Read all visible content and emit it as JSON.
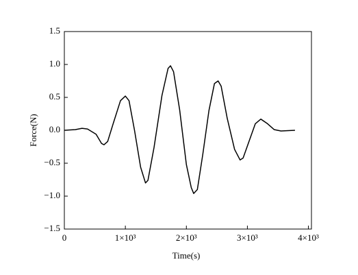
{
  "chart_data": {
    "type": "line",
    "x_label": "Time(s)",
    "y_label": "Force(N)",
    "x": [
      0,
      180,
      290,
      380,
      520,
      610,
      650,
      710,
      800,
      920,
      1000,
      1060,
      1150,
      1250,
      1330,
      1370,
      1470,
      1600,
      1700,
      1740,
      1790,
      1890,
      2000,
      2080,
      2120,
      2180,
      2270,
      2370,
      2460,
      2520,
      2570,
      2670,
      2790,
      2880,
      2930,
      3030,
      3130,
      3220,
      3330,
      3440,
      3550,
      3780
    ],
    "series": [
      {
        "color": "#000000",
        "values": [
          0,
          0.01,
          0.03,
          0.02,
          -0.06,
          -0.2,
          -0.22,
          -0.17,
          0.1,
          0.45,
          0.52,
          0.45,
          0,
          -0.56,
          -0.8,
          -0.76,
          -0.26,
          0.53,
          0.94,
          0.98,
          0.89,
          0.31,
          -0.52,
          -0.87,
          -0.96,
          -0.9,
          -0.36,
          0.3,
          0.71,
          0.75,
          0.67,
          0.18,
          -0.29,
          -0.45,
          -0.42,
          -0.16,
          0.1,
          0.17,
          0.1,
          0.01,
          -0.01,
          0
        ]
      }
    ],
    "xlim": [
      0,
      4050
    ],
    "xticks": [
      0,
      {
        "value": 1000,
        "label": "1×10³"
      },
      {
        "value": 2000,
        "label": "2×10³"
      },
      {
        "value": 3000,
        "label": "3×10³"
      },
      {
        "value": 4000,
        "label": "4×10³"
      }
    ],
    "ylim": [
      -1.5,
      1.5
    ],
    "yticks": [
      {
        "value": -1.5,
        "label": "−1.5"
      },
      {
        "value": -1,
        "label": "−1.0"
      },
      {
        "value": -0.5,
        "label": "−0.5"
      },
      {
        "value": 0,
        "label": "0.0"
      },
      {
        "value": 0.5,
        "label": "0.5"
      },
      {
        "value": 1,
        "label": "1.0"
      },
      {
        "value": 1.5,
        "label": "1.5"
      }
    ],
    "grid": false
  }
}
